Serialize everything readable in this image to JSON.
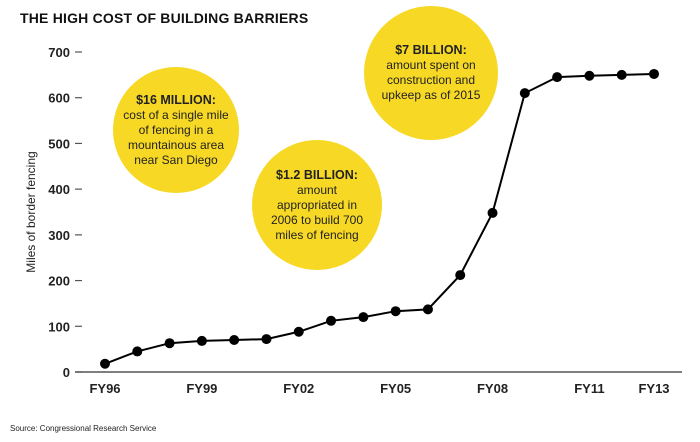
{
  "title": "THE HIGH COST OF BUILDING BARRIERS",
  "source": "Source: Congressional Research Service",
  "colors": {
    "line": "#000000",
    "bubble": "#f7d925",
    "axis": "#555555"
  },
  "annotations": [
    {
      "headline": "$16 MILLION:",
      "text": "cost of a single mile of fencing in a mountainous area near San Diego"
    },
    {
      "headline": "$1.2 BILLION:",
      "text": "amount appropriated in 2006 to build 700 miles of fencing"
    },
    {
      "headline": "$7 BILLION:",
      "text": "amount spent on construction and upkeep as of 2015"
    }
  ],
  "chart_data": {
    "type": "line",
    "title": "THE HIGH COST OF BUILDING BARRIERS",
    "xlabel": "",
    "ylabel": "Miles of border fencing",
    "ylim": [
      0,
      700
    ],
    "yticks": [
      0,
      100,
      200,
      300,
      400,
      500,
      600,
      700
    ],
    "x": [
      "FY96",
      "FY97",
      "FY98",
      "FY99",
      "FY00",
      "FY01",
      "FY02",
      "FY03",
      "FY04",
      "FY05",
      "FY06",
      "FY07",
      "FY08",
      "FY09",
      "FY10",
      "FY11",
      "FY12",
      "FY13"
    ],
    "xtick_labels": [
      "FY96",
      "FY99",
      "FY02",
      "FY05",
      "FY08",
      "FY11",
      "FY13"
    ],
    "series": [
      {
        "name": "Miles of border fencing",
        "values": [
          18,
          45,
          63,
          68,
          70,
          72,
          88,
          112,
          120,
          133,
          137,
          212,
          348,
          610,
          645,
          648,
          650,
          652
        ]
      }
    ],
    "grid": false,
    "legend": "none"
  }
}
